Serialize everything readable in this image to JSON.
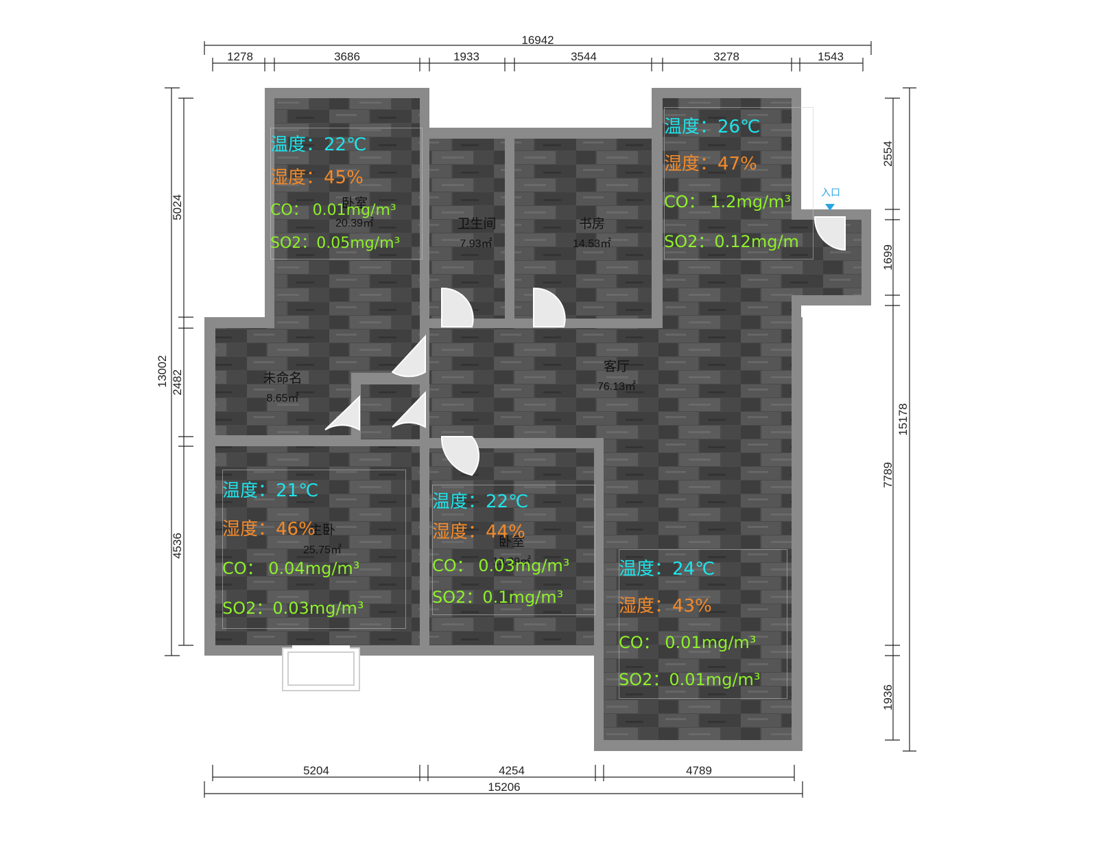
{
  "dimensions": {
    "top_total": "16942",
    "top": [
      "1278",
      "3686",
      "1933",
      "3544",
      "3278",
      "1543"
    ],
    "bottom_total": "15206",
    "bottom": [
      "5204",
      "4254",
      "4789"
    ],
    "left_total": "13002",
    "left": [
      "5024",
      "2482",
      "4536"
    ],
    "right_total": "15178",
    "right": [
      "2554",
      "1699",
      "7789",
      "1936"
    ]
  },
  "rooms": {
    "bedroom_top": {
      "name": "卧室",
      "area": "20.39㎡"
    },
    "bathroom": {
      "name": "卫生间",
      "area": "7.93㎡"
    },
    "study": {
      "name": "书房",
      "area": "14.53㎡"
    },
    "living": {
      "name": "客厅",
      "area": "76.13㎡"
    },
    "unnamed": {
      "name": "未命名",
      "area": "8.65㎡"
    },
    "master": {
      "name": "主卧",
      "area": "25.75㎡"
    },
    "bedroom_mid": {
      "name": "卧室",
      "area": "19.29㎡"
    }
  },
  "entrance_label": "入口",
  "sensors": {
    "bedroom_top": {
      "temp": "温度：22℃",
      "humidity": "湿度：45%",
      "co": "CO： 0.01mg/m³",
      "so2": "SO2：0.05mg/m³"
    },
    "entrance_room": {
      "temp": "温度：26℃",
      "humidity": "湿度：47%",
      "co": "CO：  1.2mg/m³",
      "so2": "SO2：0.12mg/m"
    },
    "master": {
      "temp": "温度：21℃",
      "humidity": "湿度：46%",
      "co": "CO：  0.04mg/m³",
      "so2": "SO2：0.03mg/m³"
    },
    "bedroom_mid": {
      "temp": "温度：22℃",
      "humidity": "湿度：44%",
      "co": "CO：  0.03mg/m³",
      "so2": "SO2：0.1mg/m³"
    },
    "living_bottom": {
      "temp": "温度：24℃",
      "humidity": "湿度：43%",
      "co": "CO：  0.01mg/m³",
      "so2": "SO2：0.01mg/m³"
    }
  },
  "colors": {
    "temp": "#1fe3ea",
    "humidity": "#f38a2a",
    "gas": "#8ef02a",
    "entrance": "#2aa4e0"
  }
}
